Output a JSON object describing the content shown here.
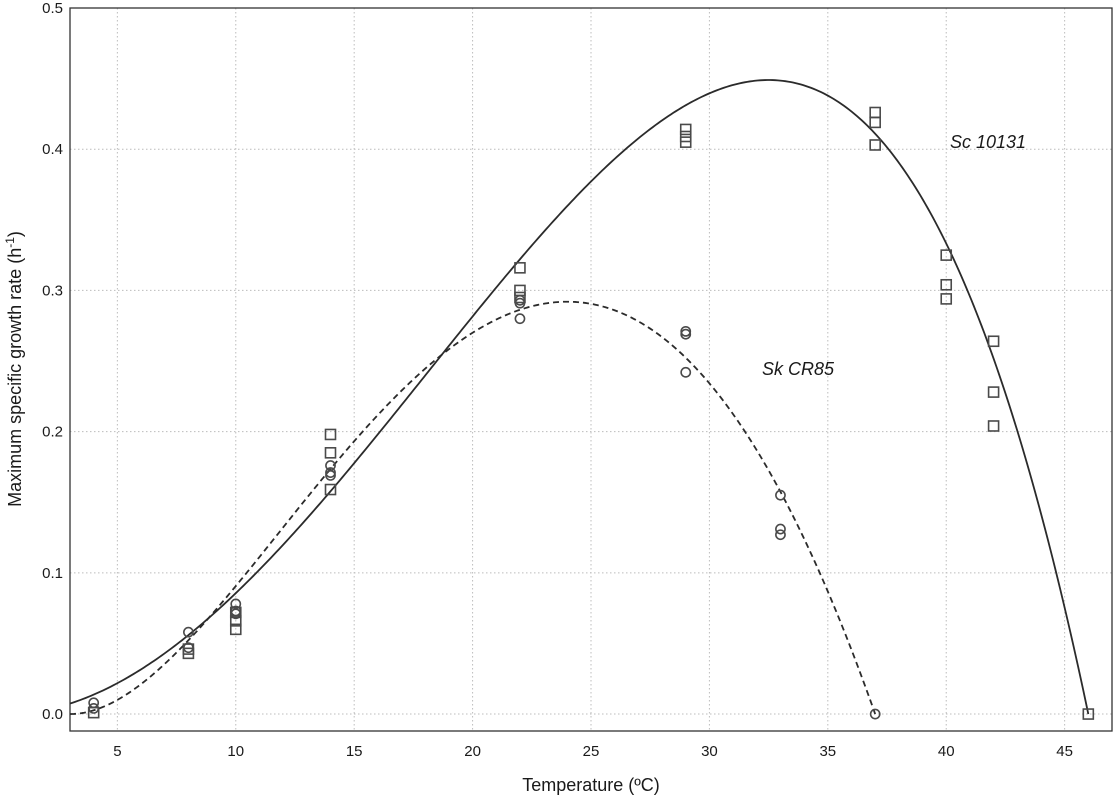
{
  "chart_data": {
    "type": "scatter",
    "xlabel": "Temperature (ºC)",
    "ylabel_main": "Maximum specific growth rate (h",
    "ylabel_sup": "-1",
    "ylabel_end": ")",
    "xlim": [
      3,
      47
    ],
    "ylim": [
      -0.012,
      0.5
    ],
    "xticks": [
      5,
      10,
      15,
      20,
      25,
      30,
      35,
      40,
      45
    ],
    "yticks": [
      0.0,
      0.1,
      0.2,
      0.3,
      0.4,
      0.5
    ],
    "ytick_labels": [
      "0.0",
      "0.1",
      "0.2",
      "0.3",
      "0.4",
      "0.5"
    ],
    "grid": true,
    "series": [
      {
        "name": "Sc 10131",
        "marker": "square",
        "line_style": "solid",
        "points": [
          [
            4,
            0.001
          ],
          [
            8,
            0.043
          ],
          [
            8,
            0.046
          ],
          [
            10,
            0.06
          ],
          [
            10,
            0.066
          ],
          [
            10,
            0.072
          ],
          [
            14,
            0.159
          ],
          [
            14,
            0.185
          ],
          [
            14,
            0.198
          ],
          [
            22,
            0.3
          ],
          [
            22,
            0.295
          ],
          [
            22,
            0.316
          ],
          [
            29,
            0.405
          ],
          [
            29,
            0.409
          ],
          [
            29,
            0.414
          ],
          [
            37,
            0.403
          ],
          [
            37,
            0.419
          ],
          [
            37,
            0.426
          ],
          [
            40,
            0.294
          ],
          [
            40,
            0.304
          ],
          [
            40,
            0.325
          ],
          [
            42,
            0.204
          ],
          [
            42,
            0.228
          ],
          [
            42,
            0.264
          ],
          [
            46,
            0.0
          ]
        ],
        "fit": {
          "model": "CTMI",
          "tmin": 0.3,
          "tmax": 46.0,
          "topt": 32.5,
          "mu_opt": 0.449
        }
      },
      {
        "name": "Sk CR85",
        "marker": "circle",
        "line_style": "dashed",
        "points": [
          [
            4,
            0.008
          ],
          [
            4,
            0.004
          ],
          [
            8,
            0.058
          ],
          [
            8,
            0.047
          ],
          [
            10,
            0.078
          ],
          [
            10,
            0.073
          ],
          [
            10,
            0.071
          ],
          [
            14,
            0.176
          ],
          [
            14,
            0.171
          ],
          [
            14,
            0.169
          ],
          [
            22,
            0.293
          ],
          [
            22,
            0.291
          ],
          [
            22,
            0.28
          ],
          [
            29,
            0.271
          ],
          [
            29,
            0.269
          ],
          [
            29,
            0.242
          ],
          [
            33,
            0.155
          ],
          [
            33,
            0.131
          ],
          [
            33,
            0.127
          ],
          [
            37,
            0.0
          ]
        ],
        "fit": {
          "model": "CTMI",
          "tmin": 3.0,
          "tmax": 37.0,
          "topt": 24.0,
          "mu_opt": 0.292
        }
      }
    ],
    "colors": {
      "line": "#2b2b2b",
      "marker": "#4a4a4a",
      "grid": "#bcbcbc",
      "axis": "#333333"
    }
  }
}
